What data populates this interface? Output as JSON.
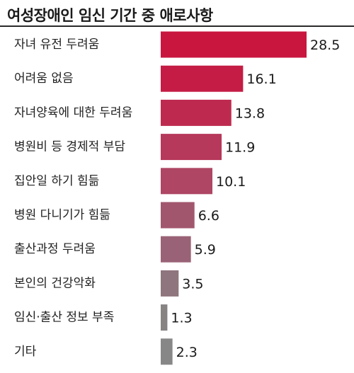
{
  "chart_data": {
    "type": "bar",
    "orientation": "horizontal",
    "title": "여성장애인 임신 기간 중 애로사항",
    "categories": [
      "자녀 유전 두려움",
      "어려움 없음",
      "자녀양육에 대한 두려움",
      "병원비 등 경제적 부담",
      "집안일 하기 힘듦",
      "병원 다니기가 힘듦",
      "출산과정 두려움",
      "본인의 건강악화",
      "임신·출산 정보 부족",
      "기타"
    ],
    "values": [
      28.5,
      16.1,
      13.8,
      11.9,
      10.1,
      6.6,
      5.9,
      3.5,
      1.3,
      2.3
    ],
    "value_labels": [
      "28.5",
      "16.1",
      "13.8",
      "11.9",
      "10.1",
      "6.6",
      "5.9",
      "3.5",
      "1.3",
      "2.3"
    ],
    "xlim": [
      0,
      28.5
    ],
    "grid": false,
    "legend": "none",
    "colors": [
      "#c8163f",
      "#c41c44",
      "#be2a4f",
      "#b6385a",
      "#ae4664",
      "#a2566e",
      "#9a6276",
      "#8f757d",
      "#878383",
      "#878787"
    ]
  }
}
